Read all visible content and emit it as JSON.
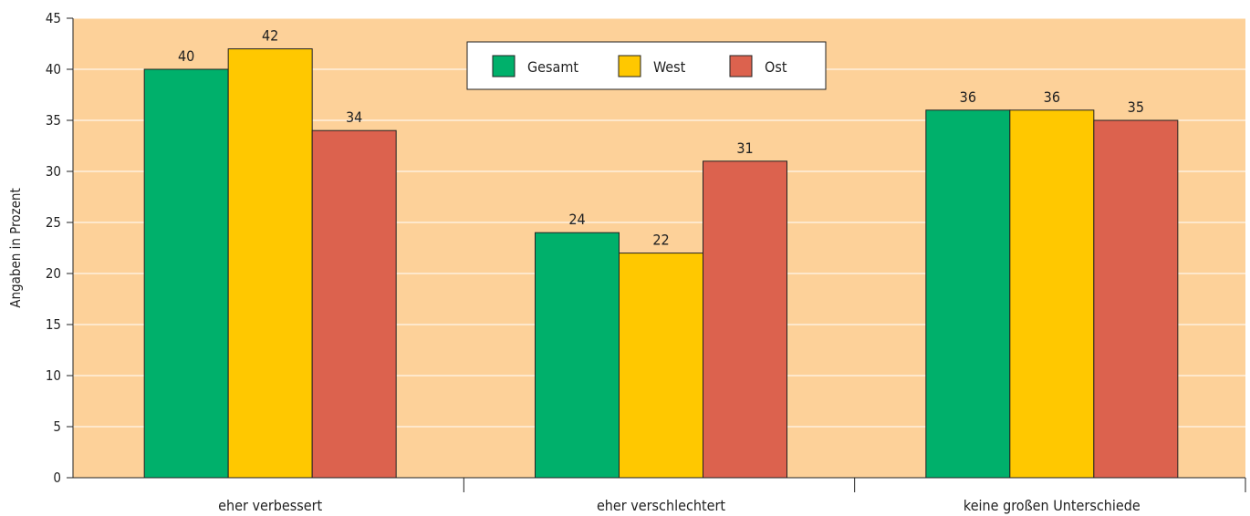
{
  "chart_data": {
    "type": "bar",
    "ylabel": "Angaben in Prozent",
    "xlabel": "",
    "ylim": [
      0,
      45
    ],
    "yticks": [
      0,
      5,
      10,
      15,
      20,
      25,
      30,
      35,
      40,
      45
    ],
    "categories": [
      "eher verbessert",
      "eher verschlechtert",
      "keine großen Unterschiede"
    ],
    "series": [
      {
        "name": "Gesamt",
        "color": "#00b06b",
        "values": [
          40,
          24,
          36
        ]
      },
      {
        "name": "West",
        "color": "#ffc800",
        "values": [
          42,
          22,
          36
        ]
      },
      {
        "name": "Ost",
        "color": "#dc624e",
        "values": [
          34,
          31,
          35
        ]
      }
    ],
    "plot_background": "#fdd199",
    "grid": true,
    "legend": "top-center",
    "data_labels": true
  }
}
